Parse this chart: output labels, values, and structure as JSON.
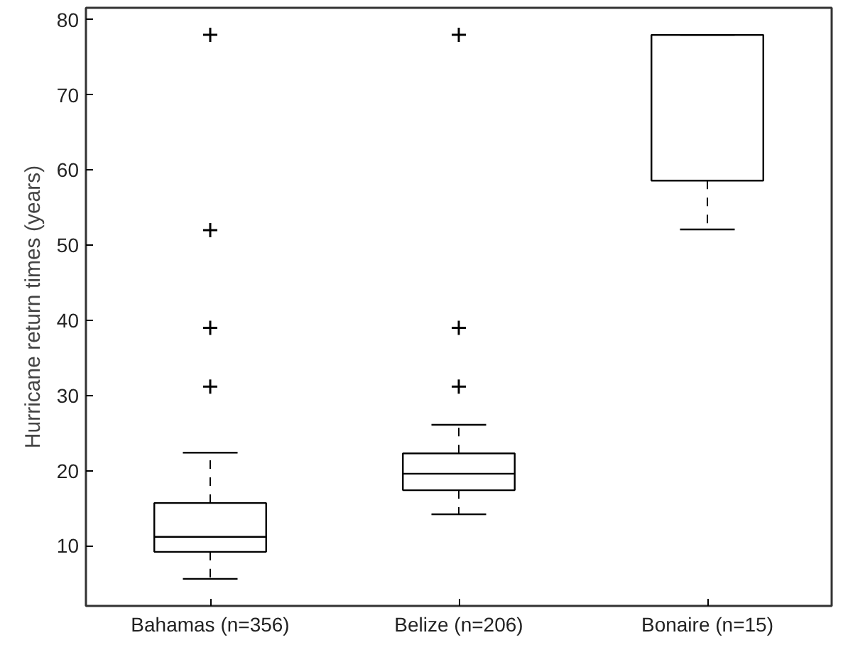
{
  "chart_data": {
    "type": "box",
    "ylabel": "Hurricane return times (years)",
    "categories": [
      "Bahamas (n=356)",
      "Belize (n=206)",
      "Bonaire (n=15)"
    ],
    "boxes": [
      {
        "low": 5.6,
        "q1": 9.2,
        "median": 11.2,
        "q3": 15.7,
        "high": 22.4,
        "outliers": [
          31.2,
          39,
          52,
          78
        ]
      },
      {
        "low": 14.2,
        "q1": 17.4,
        "median": 19.6,
        "q3": 22.3,
        "high": 26.1,
        "outliers": [
          31.2,
          39,
          78
        ]
      },
      {
        "low": 52.1,
        "q1": 58.6,
        "median": 78,
        "q3": 78,
        "high": 78
      }
    ],
    "color": "#000000",
    "ylim": [
      2,
      81.6
    ],
    "yticks": [
      10,
      20,
      30,
      40,
      50,
      60,
      70,
      80
    ],
    "grid": false,
    "marker": "cross"
  }
}
